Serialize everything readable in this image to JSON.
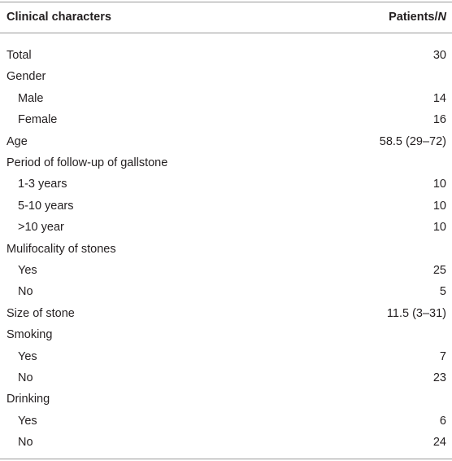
{
  "table": {
    "header": {
      "label": "Clinical characters",
      "value": "Patients/",
      "value_italic": "N"
    },
    "rows": [
      {
        "label": "Total",
        "value": "30"
      },
      {
        "label": "Gender",
        "children": [
          {
            "label": "Male",
            "value": "14"
          },
          {
            "label": "Female",
            "value": "16"
          }
        ]
      },
      {
        "label": "Age",
        "value": "58.5 (29–72)"
      },
      {
        "label": "Period of follow-up of gallstone",
        "children": [
          {
            "label": "1-3 years",
            "value": "10"
          },
          {
            "label": "5-10 years",
            "value": "10"
          },
          {
            "label": ">10 year",
            "value": "10"
          }
        ]
      },
      {
        "label": "Mulifocality of stones",
        "children": [
          {
            "label": "Yes",
            "value": "25"
          },
          {
            "label": "No",
            "value": "5"
          }
        ]
      },
      {
        "label": "Size of stone",
        "value": "11.5 (3–31)"
      },
      {
        "label": "Smoking",
        "children": [
          {
            "label": "Yes",
            "value": "7"
          },
          {
            "label": "No",
            "value": "23"
          }
        ]
      },
      {
        "label": "Drinking",
        "children": [
          {
            "label": "Yes",
            "value": "6"
          },
          {
            "label": "No",
            "value": "24"
          }
        ]
      }
    ]
  }
}
